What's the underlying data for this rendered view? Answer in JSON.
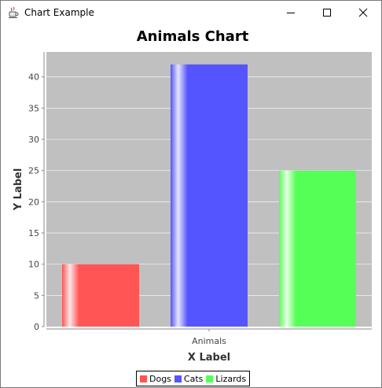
{
  "window": {
    "title": "Chart Example",
    "icon": "java-cup-icon",
    "controls": [
      "minimize-icon",
      "maximize-icon",
      "close-icon"
    ]
  },
  "chart_data": {
    "type": "bar",
    "title": "Animals Chart",
    "xlabel": "X Label",
    "ylabel": "Y Label",
    "categories": [
      "Animals"
    ],
    "series": [
      {
        "name": "Dogs",
        "values": [
          10
        ],
        "color": "#ff5555"
      },
      {
        "name": "Cats",
        "values": [
          42
        ],
        "color": "#5555ff"
      },
      {
        "name": "Lizards",
        "values": [
          25
        ],
        "color": "#55ff55"
      }
    ],
    "ylim": [
      0,
      44
    ],
    "yticks": [
      0,
      5,
      10,
      15,
      20,
      25,
      30,
      35,
      40
    ],
    "grid": true,
    "plot_background": "#c0c0c0",
    "legend_position": "bottom"
  }
}
